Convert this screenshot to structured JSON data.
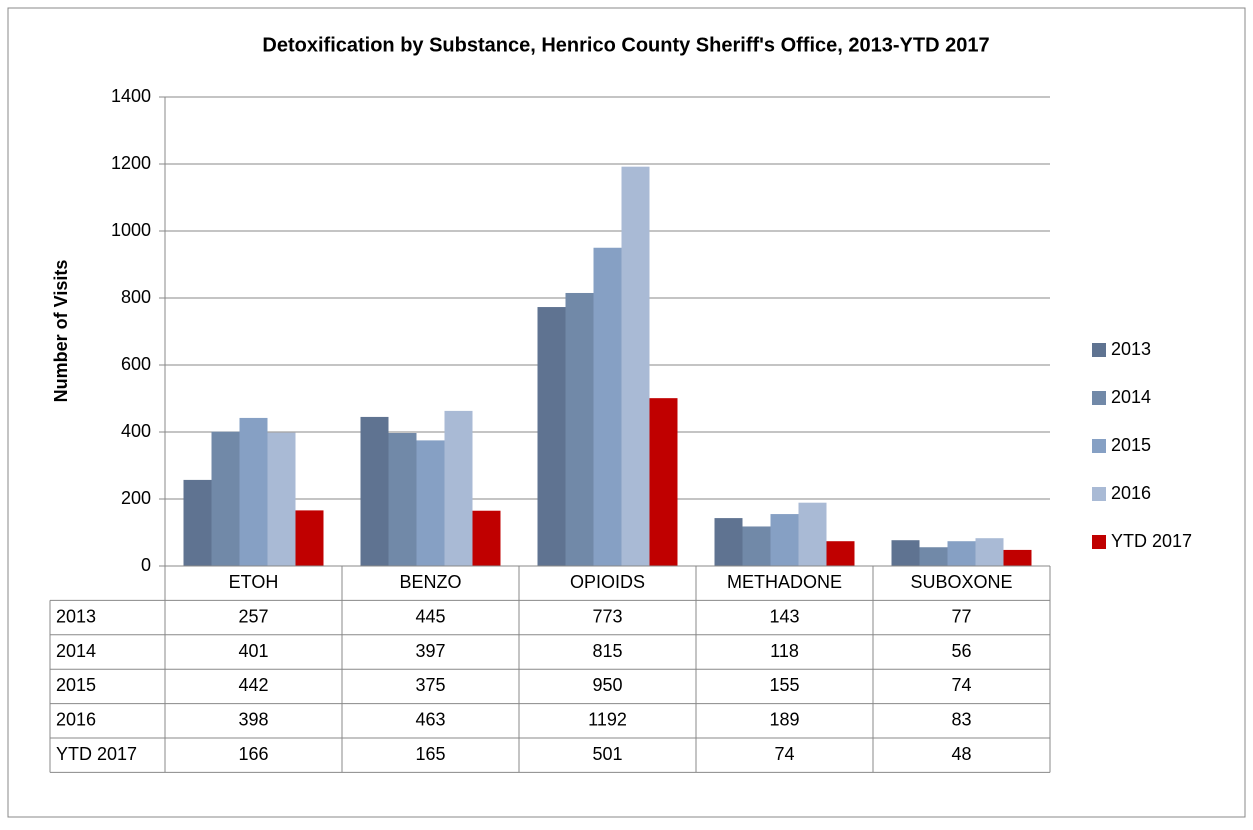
{
  "chart_data": {
    "type": "bar",
    "title": "Detoxification by Substance, Henrico County Sheriff's Office, 2013-YTD 2017",
    "y_label": "Number of Visits",
    "categories": [
      "ETOH",
      "BENZO",
      "OPIOIDS",
      "METHADONE",
      "SUBOXONE"
    ],
    "series": [
      {
        "name": "2013",
        "color": "#5f7391",
        "values": [
          257,
          445,
          773,
          143,
          77
        ]
      },
      {
        "name": "2014",
        "color": "#7189a8",
        "values": [
          401,
          397,
          815,
          118,
          56
        ]
      },
      {
        "name": "2015",
        "color": "#86a0c4",
        "values": [
          442,
          375,
          950,
          155,
          74
        ]
      },
      {
        "name": "2016",
        "color": "#a9bad5",
        "values": [
          398,
          463,
          1192,
          189,
          83
        ]
      },
      {
        "name": "YTD 2017",
        "color": "#c00000",
        "values": [
          166,
          165,
          501,
          74,
          48
        ]
      }
    ],
    "ylim": [
      0,
      1400
    ],
    "yticks": [
      0,
      200,
      400,
      600,
      800,
      1000,
      1200,
      1400
    ],
    "grid": true,
    "legend": "right",
    "data_table": true
  }
}
